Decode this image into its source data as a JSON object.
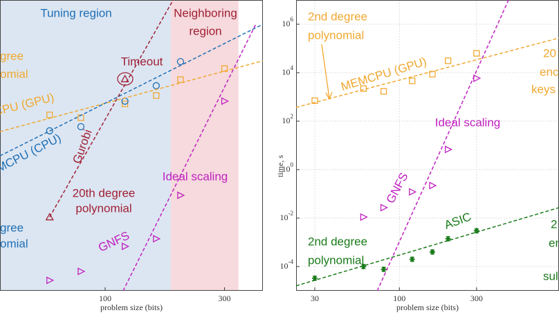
{
  "chart_data": [
    {
      "type": "scatter",
      "xlog": true,
      "ylog": true,
      "xlim": [
        38,
        427
      ],
      "ylim": [
        1e-05,
        10000000
      ],
      "xticks": [
        100,
        300
      ],
      "yticks": [],
      "grid": false,
      "xlabel": "problem size (bits)",
      "regions": [
        {
          "x": [
            38,
            183
          ],
          "color": "#dce6f2"
        },
        {
          "x": [
            183,
            341
          ],
          "color": "#f6dadd"
        }
      ],
      "series": [
        {
          "color": "#f0a830",
          "marker": "square",
          "x": [
            60,
            80,
            120,
            160,
            200,
            300
          ],
          "values": [
            181,
            139,
            518,
            1140,
            5180,
            14800
          ]
        },
        {
          "color": "#1f6fb5",
          "marker": "circle",
          "x": [
            60,
            80,
            120,
            160,
            200
          ],
          "values": [
            40,
            59,
            670,
            2900,
            28600
          ]
        },
        {
          "color": "#c020c0",
          "marker": "triangle-right",
          "x": [
            60,
            80,
            120,
            160,
            200,
            300
          ],
          "values": [
            2.7e-05,
            6.3e-05,
            0.00068,
            0.0014,
            0.087,
            670
          ]
        },
        {
          "color": "#a02035",
          "marker": "triangle-up",
          "x": [
            60,
            120
          ],
          "values": [
            0.011,
            5500
          ]
        },
        {
          "color": "#f0a830",
          "dash": true,
          "x": [
            38,
            427
          ],
          "values": [
            37,
            31000
          ]
        },
        {
          "color": "#1f6fb5",
          "dash": true,
          "x": [
            38,
            427
          ],
          "values": [
            3.7,
            1000000
          ]
        },
        {
          "color": "#c020c0",
          "dash": true,
          "x": [
            118,
            400
          ],
          "values": [
            1e-05,
            1000000
          ]
        },
        {
          "color": "#a02035",
          "dash": true,
          "x": [
            60,
            187
          ],
          "values": [
            0.011,
            10000000
          ]
        }
      ],
      "annotations": [
        {
          "text": "Tuning region",
          "color": "#1f6fb5"
        },
        {
          "text": "Neighboring",
          "color": "#a02035"
        },
        {
          "text": "region",
          "color": "#a02035"
        },
        {
          "text": "Timeout",
          "color": "#a02035"
        },
        {
          "text": "gree",
          "color": "#f0a830"
        },
        {
          "text": "omial",
          "color": "#f0a830"
        },
        {
          "text": "CPU (GPU)",
          "color": "#f0a830"
        },
        {
          "text": "MCPU (CPU)",
          "color": "#1f6fb5"
        },
        {
          "text": "Gurobi",
          "color": "#a02035"
        },
        {
          "text": "20th degree",
          "color": "#a02035"
        },
        {
          "text": "polynomial",
          "color": "#a02035"
        },
        {
          "text": "Ideal scaling",
          "color": "#c020c0"
        },
        {
          "text": "GNFS",
          "color": "#c020c0"
        },
        {
          "text": "gree",
          "color": "#1f6fb5"
        },
        {
          "text": "omial",
          "color": "#1f6fb5"
        }
      ]
    },
    {
      "type": "scatter",
      "xlog": true,
      "ylog": true,
      "xlim": [
        23,
        970
      ],
      "ylim": [
        1e-05,
        10000000
      ],
      "xticks": [
        30,
        100,
        300
      ],
      "yticks": [
        {
          "value": 0.0001,
          "label": "10^-4"
        },
        {
          "value": 0.01,
          "label": "10^-2"
        },
        {
          "value": 1,
          "label": "10^0"
        },
        {
          "value": 100,
          "label": "10^2"
        },
        {
          "value": 10000,
          "label": "10^4"
        },
        {
          "value": 1000000,
          "label": "10^6"
        }
      ],
      "grid": true,
      "xlabel": "problem size (bits)",
      "ylabel": "time, s",
      "series": [
        {
          "color": "#f0a830",
          "marker": "square",
          "x": [
            30,
            60,
            80,
            120,
            160,
            200,
            300
          ],
          "values": [
            700,
            2200,
            1700,
            4600,
            8700,
            31000,
            63000
          ]
        },
        {
          "color": "#c020c0",
          "marker": "triangle-right",
          "x": [
            60,
            80,
            120,
            160,
            200,
            300
          ],
          "values": [
            0.011,
            0.027,
            0.12,
            0.22,
            6.8,
            5900
          ]
        },
        {
          "color": "#1a7a1a",
          "marker": "star",
          "x": [
            30,
            60,
            80,
            120,
            160,
            200,
            300
          ],
          "values": [
            3.3e-05,
            0.0001,
            7.7e-05,
            0.0002,
            0.0004,
            0.0014,
            0.003
          ]
        },
        {
          "color": "#f0a830",
          "dash": true,
          "x": [
            23,
            970
          ],
          "values": [
            370,
            270000
          ]
        },
        {
          "color": "#c020c0",
          "dash": true,
          "x": [
            73,
            473
          ],
          "values": [
            1e-05,
            10000000
          ]
        },
        {
          "color": "#1a7a1a",
          "dash": true,
          "x": [
            23,
            970
          ],
          "values": [
            1.6e-05,
            0.027
          ]
        }
      ],
      "annotations": [
        {
          "text": "2nd degree",
          "color": "#f0a830"
        },
        {
          "text": "polynomial",
          "color": "#f0a830"
        },
        {
          "text": "MEMCPU (GPU)",
          "color": "#f0a830"
        },
        {
          "text": "20",
          "color": "#f0a830"
        },
        {
          "text": "enc",
          "color": "#f0a830"
        },
        {
          "text": "keys",
          "color": "#f0a830"
        },
        {
          "text": "Ideal scaling",
          "color": "#c020c0"
        },
        {
          "text": "GNFS",
          "color": "#c020c0"
        },
        {
          "text": "ASIC",
          "color": "#1a7a1a"
        },
        {
          "text": "2nd degree",
          "color": "#1a7a1a"
        },
        {
          "text": "polynomial",
          "color": "#1a7a1a"
        },
        {
          "text": "2",
          "color": "#1a7a1a"
        },
        {
          "text": "en",
          "color": "#1a7a1a"
        },
        {
          "text": "sul",
          "color": "#1a7a1a"
        }
      ]
    }
  ]
}
